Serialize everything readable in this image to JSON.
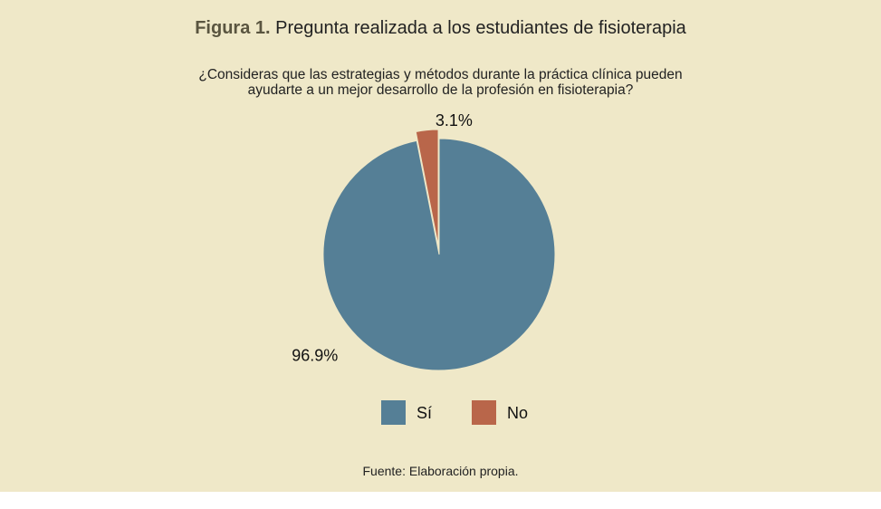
{
  "figure": {
    "label": "Figura 1.",
    "title": "Pregunta realizada a los estudiantes de fisioterapia",
    "question_line1": "¿Consideras que las estrategias y métodos durante la práctica clínica pueden",
    "question_line2": "ayudarte a un mejor desarrollo de la profesión en fisioterapia?",
    "source": "Fuente: Elaboración propia."
  },
  "chart_data": {
    "type": "pie",
    "title": "¿Consideras que las estrategias y métodos durante la práctica clínica pueden ayudarte a un mejor desarrollo de la profesión en fisioterapia?",
    "categories": [
      "Sí",
      "No"
    ],
    "values": [
      96.9,
      3.1
    ],
    "data_labels": [
      "96.9%",
      "3.1%"
    ],
    "colors": [
      "#557f96",
      "#b9664a"
    ],
    "legend": "bottom",
    "exploded": [
      "No"
    ]
  }
}
